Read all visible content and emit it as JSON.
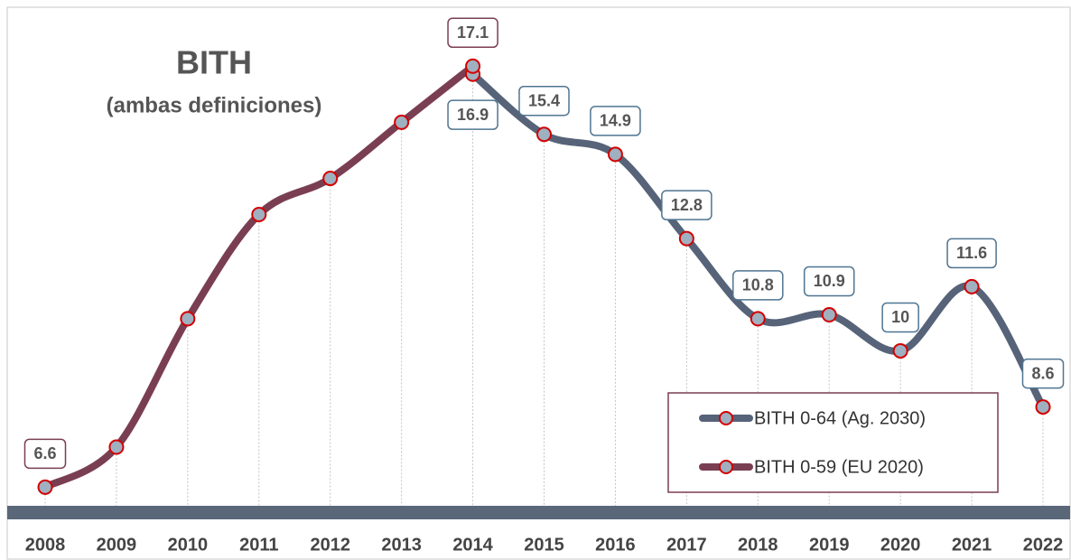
{
  "chart_data": {
    "type": "line",
    "title": "BITH",
    "subtitle": "(ambas definiciones)",
    "categories": [
      "2008",
      "2009",
      "2010",
      "2011",
      "2012",
      "2013",
      "2014",
      "2015",
      "2016",
      "2017",
      "2018",
      "2019",
      "2020",
      "2021",
      "2022"
    ],
    "series": [
      {
        "name": "BITH 0-64 (Ag. 2030)",
        "color": "#566378",
        "label_border": "#4f7591",
        "values": [
          null,
          null,
          null,
          null,
          null,
          null,
          16.9,
          15.4,
          14.9,
          12.8,
          10.8,
          10.9,
          10,
          11.6,
          8.6
        ]
      },
      {
        "name": "BITH 0-59 (EU 2020)",
        "color": "#7a3e52",
        "label_border": "#7a3e52",
        "values": [
          6.6,
          7.6,
          10.8,
          13.4,
          14.3,
          15.7,
          17.1,
          null,
          null,
          null,
          null,
          null,
          null,
          null,
          null
        ],
        "value_labels": [
          "6.6",
          null,
          null,
          null,
          null,
          null,
          "17.1",
          null,
          null,
          null,
          null,
          null,
          null,
          null,
          null
        ]
      }
    ],
    "ylim": [
      6,
      18.3
    ],
    "marker_fill": "#9fb0c0",
    "marker_stroke": "#d40000",
    "legend": "lower right",
    "grid": false
  }
}
